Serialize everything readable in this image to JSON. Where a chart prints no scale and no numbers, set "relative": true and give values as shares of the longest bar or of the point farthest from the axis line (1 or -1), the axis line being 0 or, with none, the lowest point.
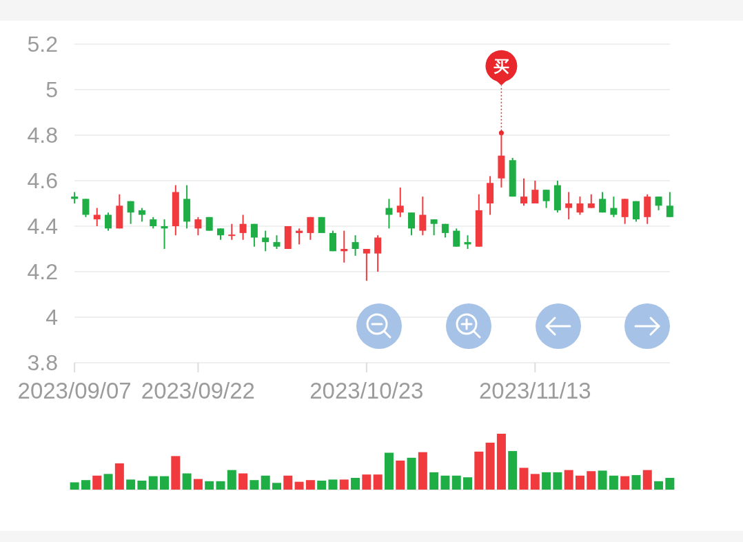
{
  "chart_data": [
    {
      "type": "candlestick",
      "categories": [
        "2023/09/07",
        null,
        null,
        null,
        null,
        null,
        null,
        null,
        null,
        null,
        null,
        "2023/09/22",
        null,
        null,
        null,
        null,
        null,
        null,
        null,
        null,
        null,
        null,
        null,
        null,
        null,
        null,
        "2023/10/23",
        null,
        null,
        null,
        null,
        null,
        null,
        null,
        null,
        null,
        null,
        null,
        null,
        null,
        null,
        "2023/11/13",
        null,
        null,
        null,
        null,
        null,
        null,
        null,
        null,
        null,
        null,
        null,
        null
      ],
      "ohlc": [
        [
          4.53,
          4.55,
          4.5,
          4.52
        ],
        [
          4.52,
          4.52,
          4.44,
          4.45
        ],
        [
          4.43,
          4.48,
          4.4,
          4.45
        ],
        [
          4.45,
          4.46,
          4.38,
          4.39
        ],
        [
          4.39,
          4.54,
          4.39,
          4.49
        ],
        [
          4.51,
          4.51,
          4.41,
          4.46
        ],
        [
          4.47,
          4.48,
          4.42,
          4.45
        ],
        [
          4.43,
          4.44,
          4.39,
          4.4
        ],
        [
          4.4,
          4.43,
          4.3,
          4.39
        ],
        [
          4.4,
          4.58,
          4.36,
          4.55
        ],
        [
          4.52,
          4.58,
          4.39,
          4.42
        ],
        [
          4.39,
          4.44,
          4.36,
          4.43
        ],
        [
          4.44,
          4.44,
          4.38,
          4.38
        ],
        [
          4.39,
          4.39,
          4.34,
          4.36
        ],
        [
          4.36,
          4.41,
          4.34,
          4.36
        ],
        [
          4.37,
          4.45,
          4.34,
          4.41
        ],
        [
          4.41,
          4.41,
          4.31,
          4.35
        ],
        [
          4.35,
          4.38,
          4.29,
          4.33
        ],
        [
          4.33,
          4.36,
          4.3,
          4.31
        ],
        [
          4.3,
          4.4,
          4.3,
          4.4
        ],
        [
          4.37,
          4.39,
          4.32,
          4.38
        ],
        [
          4.37,
          4.44,
          4.34,
          4.44
        ],
        [
          4.44,
          4.44,
          4.37,
          4.37
        ],
        [
          4.37,
          4.38,
          4.29,
          4.29
        ],
        [
          4.29,
          4.38,
          4.24,
          4.3
        ],
        [
          4.33,
          4.36,
          4.27,
          4.3
        ],
        [
          4.28,
          4.3,
          4.16,
          4.3
        ],
        [
          4.28,
          4.36,
          4.2,
          4.35
        ],
        [
          4.48,
          4.52,
          4.39,
          4.45
        ],
        [
          4.46,
          4.57,
          4.44,
          4.49
        ],
        [
          4.46,
          4.46,
          4.36,
          4.39
        ],
        [
          4.38,
          4.53,
          4.36,
          4.45
        ],
        [
          4.43,
          4.43,
          4.36,
          4.41
        ],
        [
          4.41,
          4.41,
          4.35,
          4.37
        ],
        [
          4.38,
          4.39,
          4.31,
          4.31
        ],
        [
          4.33,
          4.36,
          4.3,
          4.32
        ],
        [
          4.31,
          4.54,
          4.31,
          4.47
        ],
        [
          4.5,
          4.62,
          4.45,
          4.59
        ],
        [
          4.61,
          4.81,
          4.57,
          4.71
        ],
        [
          4.69,
          4.7,
          4.53,
          4.53
        ],
        [
          4.5,
          4.61,
          4.49,
          4.53
        ],
        [
          4.5,
          4.6,
          4.5,
          4.56
        ],
        [
          4.56,
          4.56,
          4.48,
          4.51
        ],
        [
          4.58,
          4.6,
          4.46,
          4.47
        ],
        [
          4.48,
          4.55,
          4.43,
          4.5
        ],
        [
          4.46,
          4.53,
          4.45,
          4.5
        ],
        [
          4.48,
          4.54,
          4.48,
          4.5
        ],
        [
          4.52,
          4.55,
          4.46,
          4.46
        ],
        [
          4.48,
          4.53,
          4.44,
          4.45
        ],
        [
          4.44,
          4.52,
          4.41,
          4.52
        ],
        [
          4.51,
          4.51,
          4.42,
          4.43
        ],
        [
          4.44,
          4.54,
          4.41,
          4.53
        ],
        [
          4.53,
          4.53,
          4.47,
          4.49
        ],
        [
          4.49,
          4.55,
          4.44,
          4.44
        ]
      ],
      "colors": [
        "#1fae45",
        "#1fae45",
        "#f03a3e",
        "#1fae45",
        "#f03a3e",
        "#1fae45",
        "#1fae45",
        "#1fae45",
        "#1fae45",
        "#f03a3e",
        "#1fae45",
        "#f03a3e",
        "#1fae45",
        "#1fae45",
        "#f03a3e",
        "#f03a3e",
        "#1fae45",
        "#1fae45",
        "#1fae45",
        "#f03a3e",
        "#f03a3e",
        "#f03a3e",
        "#1fae45",
        "#1fae45",
        "#f03a3e",
        "#1fae45",
        "#f03a3e",
        "#f03a3e",
        "#1fae45",
        "#f03a3e",
        "#1fae45",
        "#f03a3e",
        "#1fae45",
        "#1fae45",
        "#1fae45",
        "#1fae45",
        "#f03a3e",
        "#f03a3e",
        "#f03a3e",
        "#1fae45",
        "#f03a3e",
        "#f03a3e",
        "#1fae45",
        "#1fae45",
        "#f03a3e",
        "#f03a3e",
        "#f03a3e",
        "#1fae45",
        "#1fae45",
        "#f03a3e",
        "#1fae45",
        "#f03a3e",
        "#1fae45",
        "#1fae45"
      ],
      "ylim": [
        3.8,
        5.2
      ],
      "yticks": [
        3.8,
        4,
        4.2,
        4.4,
        4.6,
        4.8,
        5,
        5.2
      ],
      "grid": "y",
      "annotations": [
        {
          "text": "买",
          "y": 4.81
        }
      ]
    },
    {
      "type": "bar",
      "categories": [
        null,
        null,
        null,
        null,
        null,
        null,
        null,
        null,
        null,
        null,
        null,
        null,
        null,
        null,
        null,
        null,
        null,
        null,
        null,
        null,
        null,
        null,
        null,
        null,
        null,
        null,
        null,
        null,
        null,
        null,
        null,
        null,
        null,
        null,
        null,
        null,
        null,
        null,
        null,
        null,
        null,
        null,
        null,
        null,
        null,
        null,
        null,
        null,
        null,
        null,
        null,
        null,
        null,
        null
      ],
      "values": [
        0.13,
        0.17,
        0.25,
        0.28,
        0.47,
        0.18,
        0.16,
        0.24,
        0.24,
        0.6,
        0.29,
        0.19,
        0.15,
        0.15,
        0.35,
        0.29,
        0.17,
        0.25,
        0.12,
        0.25,
        0.14,
        0.17,
        0.16,
        0.18,
        0.18,
        0.21,
        0.27,
        0.27,
        0.66,
        0.52,
        0.57,
        0.67,
        0.31,
        0.25,
        0.25,
        0.22,
        0.68,
        0.84,
        1,
        0.69,
        0.39,
        0.28,
        0.31,
        0.31,
        0.35,
        0.25,
        0.33,
        0.34,
        0.25,
        0.24,
        0.26,
        0.35,
        0.15,
        0.21
      ],
      "colors": [
        "#1fae45",
        "#1fae45",
        "#f03a3e",
        "#1fae45",
        "#f03a3e",
        "#1fae45",
        "#1fae45",
        "#1fae45",
        "#1fae45",
        "#f03a3e",
        "#1fae45",
        "#f03a3e",
        "#1fae45",
        "#1fae45",
        "#1fae45",
        "#f03a3e",
        "#1fae45",
        "#1fae45",
        "#1fae45",
        "#f03a3e",
        "#f03a3e",
        "#f03a3e",
        "#1fae45",
        "#1fae45",
        "#f03a3e",
        "#1fae45",
        "#f03a3e",
        "#f03a3e",
        "#1fae45",
        "#f03a3e",
        "#1fae45",
        "#f03a3e",
        "#1fae45",
        "#1fae45",
        "#1fae45",
        "#1fae45",
        "#f03a3e",
        "#f03a3e",
        "#f03a3e",
        "#1fae45",
        "#f03a3e",
        "#f03a3e",
        "#1fae45",
        "#1fae45",
        "#f03a3e",
        "#f03a3e",
        "#f03a3e",
        "#1fae45",
        "#1fae45",
        "#f03a3e",
        "#1fae45",
        "#f03a3e",
        "#1fae45",
        "#1fae45"
      ],
      "relative": true
    }
  ]
}
